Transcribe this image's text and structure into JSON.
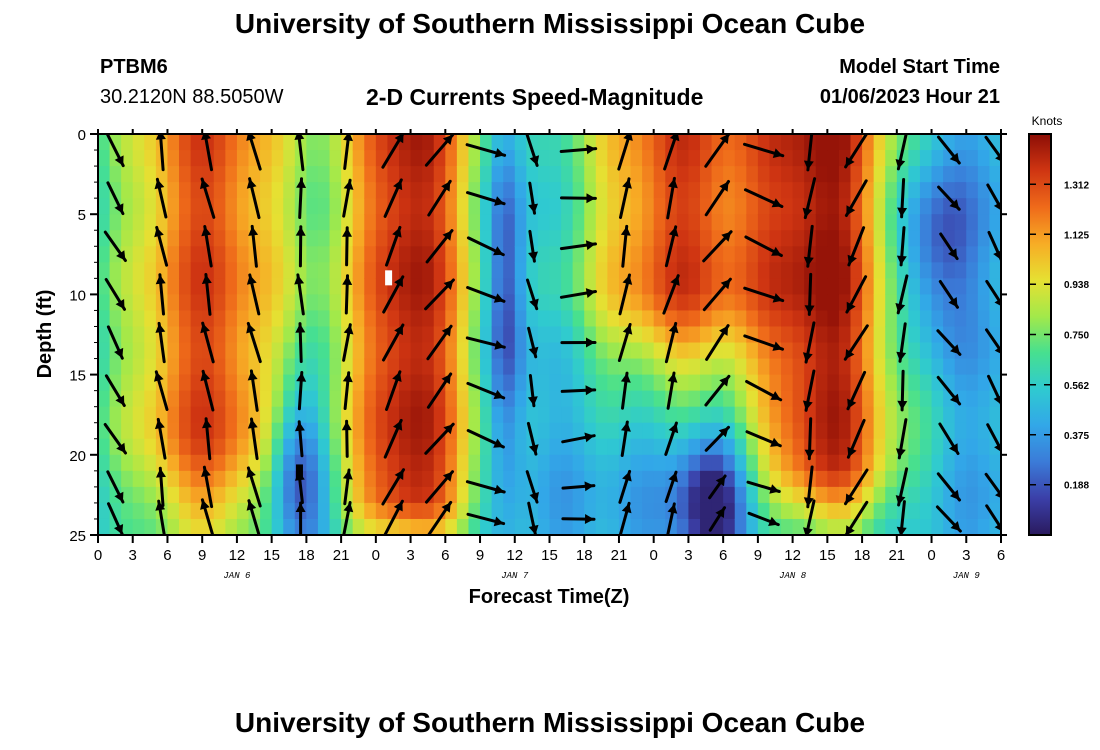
{
  "header": {
    "title": "University of Southern Mississippi Ocean Cube",
    "station_id": "PTBM6",
    "coords": "30.2120N  88.5050W",
    "plot_title": "2-D Currents Speed-Magnitude",
    "start_label": "Model Start Time",
    "start_value": "01/06/2023 Hour 21"
  },
  "footer": {
    "title": "University of Southern Mississippi Ocean Cube"
  },
  "colors": {
    "ramp": [
      "#2a1a5e",
      "#3b3fa8",
      "#3b7bd8",
      "#32a7e8",
      "#2fcad0",
      "#47e08f",
      "#a2e94a",
      "#e6e032",
      "#f7ac25",
      "#ef6a1a",
      "#cf3512",
      "#8c0e06"
    ],
    "arrow": "#000000",
    "missing": "#ffffff"
  },
  "chart_data": {
    "type": "heatmap",
    "title": "2-D Currents Speed-Magnitude",
    "xlabel": "Forecast Time(Z)",
    "ylabel": "Depth (ft)",
    "x_unit": "hours from 2023-01-06 00Z",
    "xlim": [
      0,
      78
    ],
    "ylim": [
      0,
      25
    ],
    "y_inverted": true,
    "x_ticks": [
      0,
      3,
      6,
      9,
      12,
      15,
      18,
      21,
      24,
      27,
      30,
      33,
      36,
      39,
      42,
      45,
      48,
      51,
      54,
      57,
      60,
      63,
      66,
      69,
      72,
      75,
      78
    ],
    "x_tick_labels": [
      "0",
      "3",
      "6",
      "9",
      "12",
      "15",
      "18",
      "21",
      "0",
      "3",
      "6",
      "9",
      "12",
      "15",
      "18",
      "21",
      "0",
      "3",
      "6",
      "9",
      "12",
      "15",
      "18",
      "21",
      "0",
      "3",
      "6"
    ],
    "date_labels": [
      {
        "x": 12,
        "label": "JAN 6"
      },
      {
        "x": 36,
        "label": "JAN 7"
      },
      {
        "x": 60,
        "label": "JAN 8"
      },
      {
        "x": 75,
        "label": "JAN 9"
      }
    ],
    "y_ticks": [
      0,
      5,
      10,
      15,
      20,
      25
    ],
    "y_tick_labels": [
      "0",
      "5",
      "10",
      "15",
      "20",
      "25"
    ],
    "colorbar": {
      "label": "Knots",
      "ticks": [
        0.188,
        0.375,
        0.562,
        0.75,
        0.938,
        1.125,
        1.312
      ],
      "tick_labels": [
        "0.188",
        "0.375",
        "0.562",
        "0.750",
        "0.938",
        "1.125",
        "1.312"
      ],
      "range": [
        0,
        1.5
      ]
    },
    "speed_cores": [
      {
        "t": 9.5,
        "w": 5.5,
        "v": 1.3,
        "top": 0.5,
        "bot": 18,
        "fall": 9
      },
      {
        "t": 27,
        "w": 4.2,
        "v": 1.45,
        "top": 0,
        "bot": 22,
        "fall": 4
      },
      {
        "t": 50,
        "w": 6.0,
        "v": 1.3,
        "top": 0,
        "bot": 9,
        "fall": 7
      },
      {
        "t": 63,
        "w": 4.5,
        "v": 1.4,
        "top": 0,
        "bot": 20,
        "fall": 5
      }
    ],
    "slow_cores": [
      {
        "t": 17.2,
        "d": 21,
        "wt": 1.8,
        "wd": 4,
        "depth": 0.55
      },
      {
        "t": 35.2,
        "d": 10,
        "wt": 1.2,
        "wd": 8,
        "depth": 0.45
      },
      {
        "t": 53,
        "d": 23,
        "wt": 2.2,
        "wd": 3,
        "depth": 0.5
      },
      {
        "t": 72,
        "d": 7,
        "wt": 2.5,
        "wd": 4,
        "depth": 0.35
      }
    ],
    "arrow_rows_depth_ft": [
      1,
      4,
      7,
      10,
      13,
      16,
      19,
      22,
      24
    ],
    "arrow_columns_hours": [
      0,
      4,
      8,
      12,
      16,
      20,
      24,
      28,
      32,
      36,
      40,
      44,
      48,
      52,
      56,
      60,
      64,
      68,
      72,
      76
    ],
    "direction_schedule_deg": [
      {
        "t": 0,
        "deg": 150
      },
      {
        "t": 4,
        "deg": -10
      },
      {
        "t": 12,
        "deg": -12
      },
      {
        "t": 16,
        "deg": -2
      },
      {
        "t": 20,
        "deg": 5
      },
      {
        "t": 24,
        "deg": 25
      },
      {
        "t": 30,
        "deg": 45
      },
      {
        "t": 34,
        "deg": 175
      },
      {
        "t": 38,
        "deg": 160
      },
      {
        "t": 42,
        "deg": 10
      },
      {
        "t": 48,
        "deg": 15
      },
      {
        "t": 54,
        "deg": 50
      },
      {
        "t": 58,
        "deg": 175
      },
      {
        "t": 62,
        "deg": 200
      },
      {
        "t": 66,
        "deg": 215
      },
      {
        "t": 70,
        "deg": 160
      },
      {
        "t": 74,
        "deg": 125
      },
      {
        "t": 78,
        "deg": 175
      }
    ]
  }
}
